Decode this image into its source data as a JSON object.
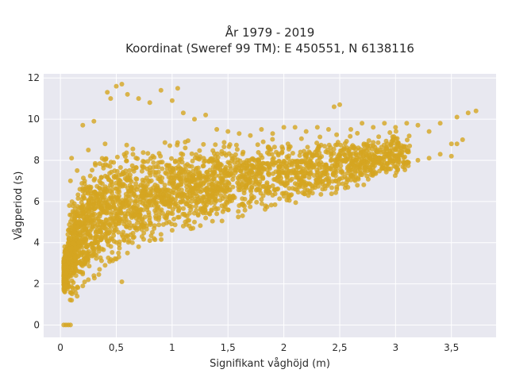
{
  "colors": {
    "plot_background": "#e8e8f0",
    "gridline": "#ffffff",
    "marker": "#d4a520"
  },
  "chart_data": {
    "type": "scatter",
    "title": "År 1979 - 2019",
    "subtitle": "Koordinat (Sweref 99 TM): E 450551, N 6138116",
    "xlabel": "Signifikant våghöjd (m)",
    "ylabel": "Vågperiod (s)",
    "xlim": [
      -0.15,
      3.9
    ],
    "ylim": [
      -0.6,
      12.2
    ],
    "x_ticks": [
      0,
      0.5,
      1,
      1.5,
      2,
      2.5,
      3,
      3.5
    ],
    "x_tick_labels": [
      "0",
      "0,5",
      "1",
      "1,5",
      "2",
      "2,5",
      "3",
      "3,5"
    ],
    "y_ticks": [
      0,
      2,
      4,
      6,
      8,
      10,
      12
    ],
    "y_tick_labels": [
      "0",
      "2",
      "4",
      "6",
      "8",
      "10",
      "12"
    ],
    "grid": true,
    "legend": "none",
    "points": [
      {
        "x": 0.03,
        "y": 0.0
      },
      {
        "x": 0.05,
        "y": 0.0
      },
      {
        "x": 0.07,
        "y": 0.0
      },
      {
        "x": 0.09,
        "y": 0.0
      },
      {
        "x": 0.04,
        "y": 1.6
      },
      {
        "x": 0.05,
        "y": 2.5
      },
      {
        "x": 0.06,
        "y": 3.5
      },
      {
        "x": 0.07,
        "y": 4.6
      },
      {
        "x": 0.08,
        "y": 5.8
      },
      {
        "x": 0.09,
        "y": 7.0
      },
      {
        "x": 0.1,
        "y": 8.1
      },
      {
        "x": 0.1,
        "y": 1.2
      },
      {
        "x": 0.15,
        "y": 1.4
      },
      {
        "x": 0.15,
        "y": 3.0
      },
      {
        "x": 0.15,
        "y": 5.0
      },
      {
        "x": 0.15,
        "y": 7.5
      },
      {
        "x": 0.2,
        "y": 1.9
      },
      {
        "x": 0.2,
        "y": 4.0
      },
      {
        "x": 0.2,
        "y": 6.5
      },
      {
        "x": 0.2,
        "y": 9.7
      },
      {
        "x": 0.25,
        "y": 2.2
      },
      {
        "x": 0.25,
        "y": 5.5
      },
      {
        "x": 0.25,
        "y": 8.5
      },
      {
        "x": 0.3,
        "y": 2.4
      },
      {
        "x": 0.3,
        "y": 6.0
      },
      {
        "x": 0.3,
        "y": 9.9
      },
      {
        "x": 0.35,
        "y": 2.7
      },
      {
        "x": 0.35,
        "y": 7.0
      },
      {
        "x": 0.4,
        "y": 2.9
      },
      {
        "x": 0.4,
        "y": 8.8
      },
      {
        "x": 0.42,
        "y": 11.3
      },
      {
        "x": 0.45,
        "y": 11.0
      },
      {
        "x": 0.5,
        "y": 3.2
      },
      {
        "x": 0.5,
        "y": 11.6
      },
      {
        "x": 0.55,
        "y": 2.1
      },
      {
        "x": 0.55,
        "y": 11.7
      },
      {
        "x": 0.6,
        "y": 3.5
      },
      {
        "x": 0.6,
        "y": 11.2
      },
      {
        "x": 0.7,
        "y": 3.8
      },
      {
        "x": 0.7,
        "y": 11.0
      },
      {
        "x": 0.8,
        "y": 4.1
      },
      {
        "x": 0.8,
        "y": 10.8
      },
      {
        "x": 0.9,
        "y": 4.4
      },
      {
        "x": 0.9,
        "y": 11.4
      },
      {
        "x": 1.0,
        "y": 4.6
      },
      {
        "x": 1.0,
        "y": 10.9
      },
      {
        "x": 1.05,
        "y": 11.5
      },
      {
        "x": 1.1,
        "y": 4.8
      },
      {
        "x": 1.1,
        "y": 10.3
      },
      {
        "x": 1.2,
        "y": 5.0
      },
      {
        "x": 1.2,
        "y": 10.0
      },
      {
        "x": 1.3,
        "y": 5.2
      },
      {
        "x": 1.3,
        "y": 10.2
      },
      {
        "x": 1.4,
        "y": 5.4
      },
      {
        "x": 1.4,
        "y": 9.5
      },
      {
        "x": 1.5,
        "y": 5.6
      },
      {
        "x": 1.5,
        "y": 9.4
      },
      {
        "x": 1.6,
        "y": 5.8
      },
      {
        "x": 1.6,
        "y": 9.3
      },
      {
        "x": 1.7,
        "y": 6.0
      },
      {
        "x": 1.7,
        "y": 9.2
      },
      {
        "x": 1.8,
        "y": 6.1
      },
      {
        "x": 1.8,
        "y": 9.5
      },
      {
        "x": 1.9,
        "y": 6.3
      },
      {
        "x": 1.9,
        "y": 9.3
      },
      {
        "x": 2.0,
        "y": 6.4
      },
      {
        "x": 2.0,
        "y": 9.6
      },
      {
        "x": 2.1,
        "y": 6.6
      },
      {
        "x": 2.1,
        "y": 9.6
      },
      {
        "x": 2.2,
        "y": 6.8
      },
      {
        "x": 2.2,
        "y": 9.4
      },
      {
        "x": 2.3,
        "y": 6.9
      },
      {
        "x": 2.3,
        "y": 9.6
      },
      {
        "x": 2.4,
        "y": 7.0
      },
      {
        "x": 2.4,
        "y": 9.5
      },
      {
        "x": 2.45,
        "y": 10.6
      },
      {
        "x": 2.5,
        "y": 7.1
      },
      {
        "x": 2.5,
        "y": 10.7
      },
      {
        "x": 2.6,
        "y": 7.2
      },
      {
        "x": 2.6,
        "y": 9.5
      },
      {
        "x": 2.7,
        "y": 7.3
      },
      {
        "x": 2.7,
        "y": 9.8
      },
      {
        "x": 2.8,
        "y": 7.5
      },
      {
        "x": 2.8,
        "y": 9.6
      },
      {
        "x": 2.9,
        "y": 7.6
      },
      {
        "x": 2.9,
        "y": 9.8
      },
      {
        "x": 3.0,
        "y": 7.7
      },
      {
        "x": 3.0,
        "y": 9.6
      },
      {
        "x": 3.1,
        "y": 7.9
      },
      {
        "x": 3.1,
        "y": 9.8
      },
      {
        "x": 3.2,
        "y": 8.0
      },
      {
        "x": 3.2,
        "y": 9.7
      },
      {
        "x": 3.3,
        "y": 8.1
      },
      {
        "x": 3.3,
        "y": 9.4
      },
      {
        "x": 3.4,
        "y": 8.3
      },
      {
        "x": 3.4,
        "y": 9.8
      },
      {
        "x": 3.5,
        "y": 8.2
      },
      {
        "x": 3.5,
        "y": 8.8
      },
      {
        "x": 3.55,
        "y": 8.8
      },
      {
        "x": 3.55,
        "y": 10.1
      },
      {
        "x": 3.6,
        "y": 9.0
      },
      {
        "x": 3.65,
        "y": 10.3
      },
      {
        "x": 3.72,
        "y": 10.4
      }
    ]
  }
}
